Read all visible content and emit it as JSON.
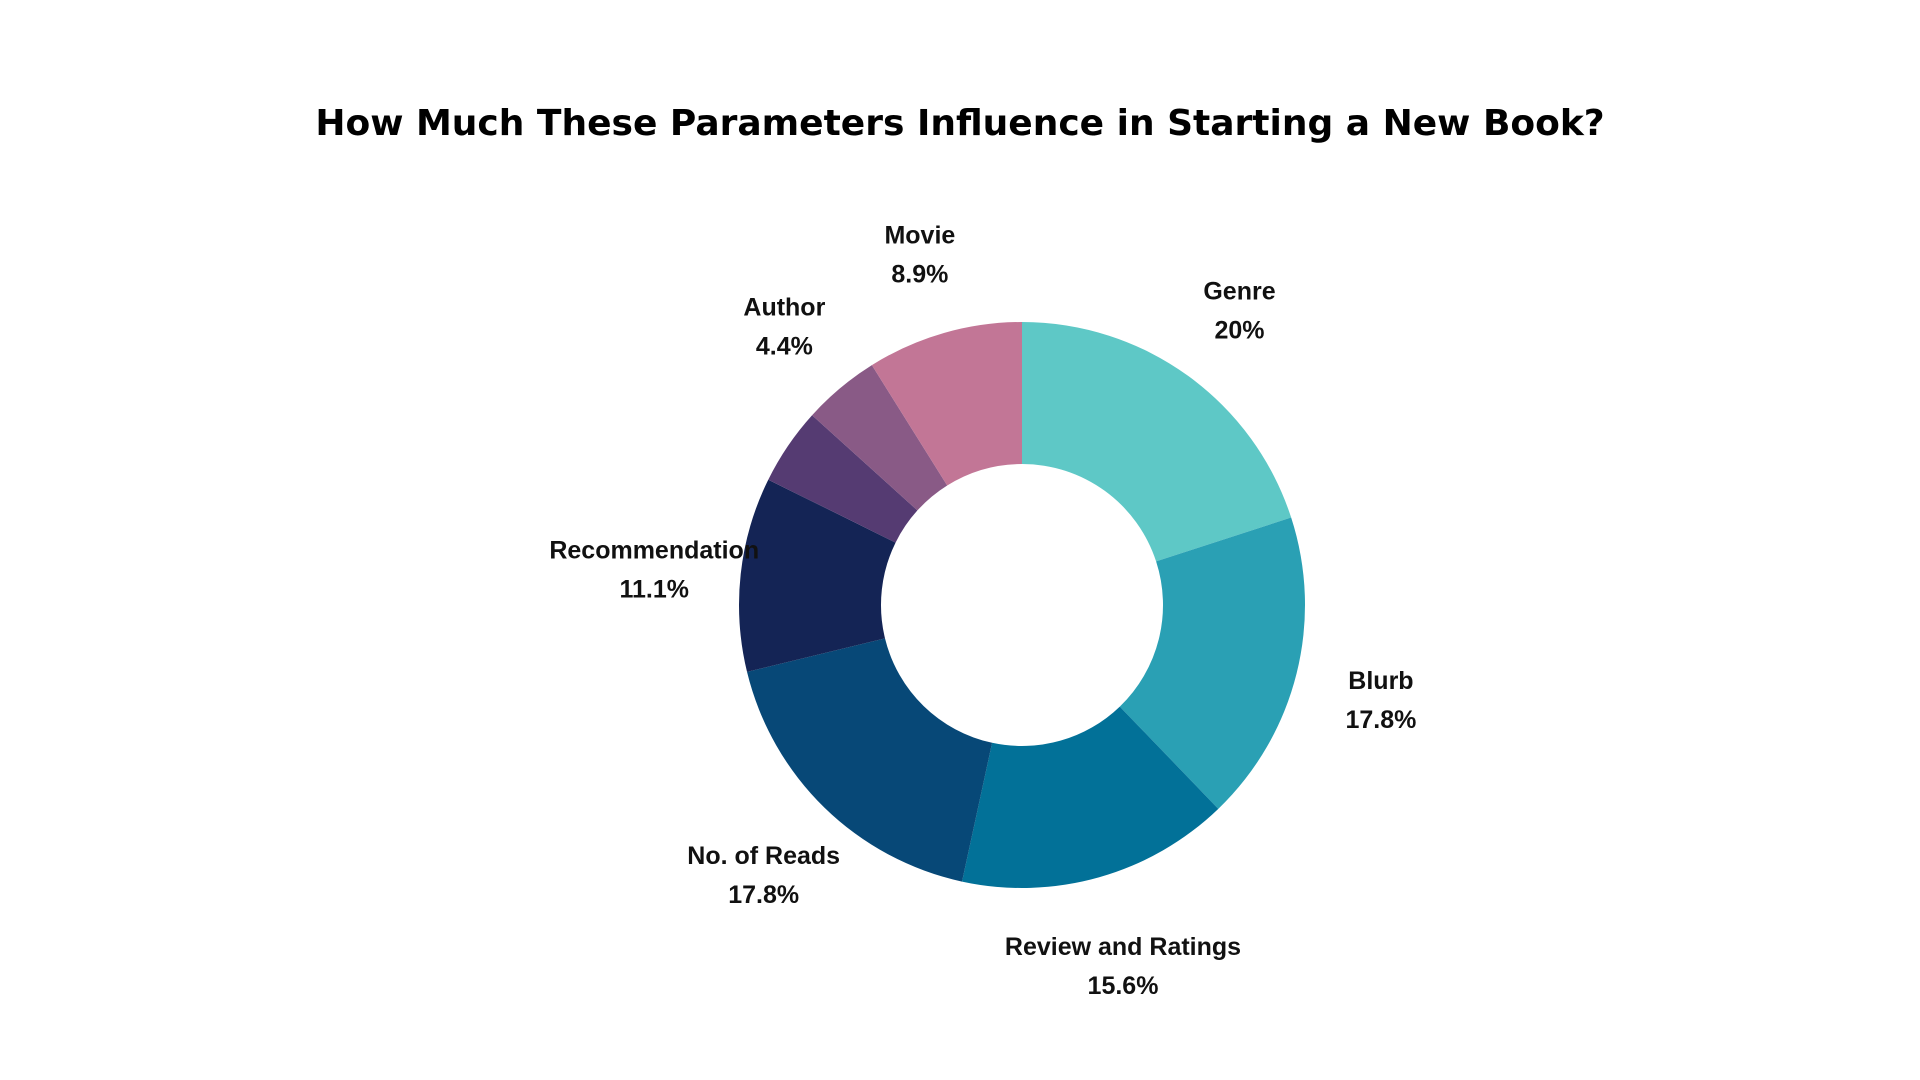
{
  "chart_data": {
    "type": "pie",
    "variant": "donut",
    "title": "How Much These Parameters Influence in Starting a New Book?",
    "start": "12 o'clock",
    "direction": "clockwise",
    "slices": [
      {
        "label": "Genre",
        "value": 20,
        "display": "20%",
        "color": "#5ec8c6"
      },
      {
        "label": "Blurb",
        "value": 17.8,
        "display": "17.8%",
        "color": "#2aa0b4"
      },
      {
        "label": "Review and Ratings",
        "value": 15.6,
        "display": "15.6%",
        "color": "#027198"
      },
      {
        "label": "No. of Reads",
        "value": 17.8,
        "display": "17.8%",
        "color": "#074877"
      },
      {
        "label": "Recommendation",
        "value": 11.1,
        "display": "11.1%",
        "color": "#142455"
      },
      {
        "label": "",
        "value": 4.4,
        "display": "",
        "color": "#553b72"
      },
      {
        "label": "Author",
        "value": 4.4,
        "display": "4.4%",
        "color": "#895a86"
      },
      {
        "label": "Movie",
        "value": 8.9,
        "display": "8.9%",
        "color": "#c27696"
      }
    ]
  }
}
